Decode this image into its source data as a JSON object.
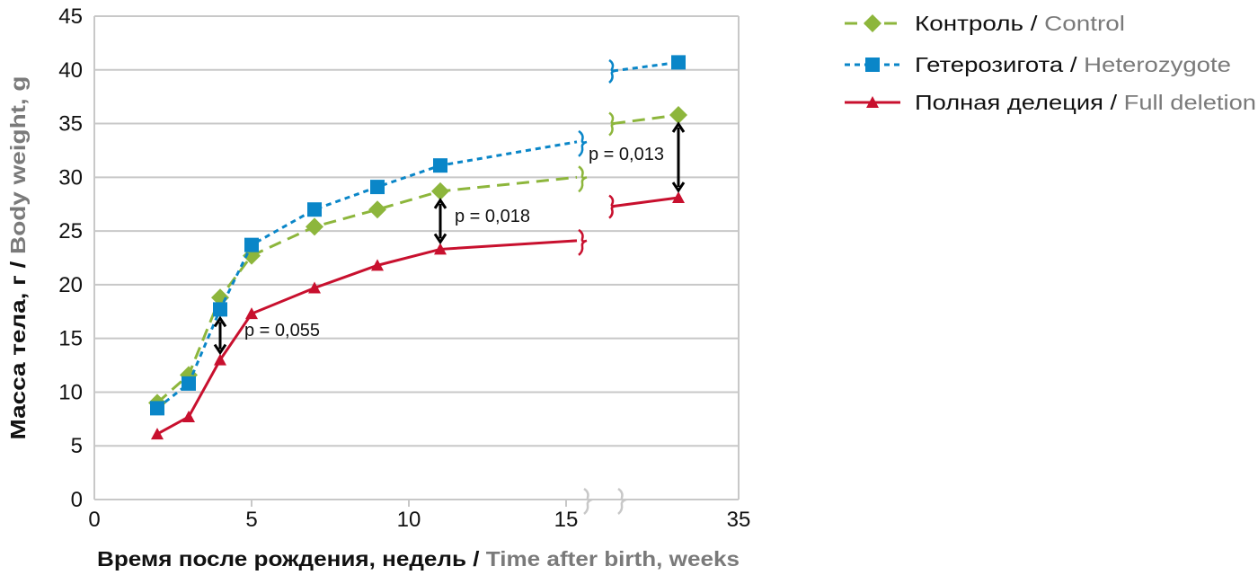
{
  "chart_data": {
    "type": "line",
    "xlabel": {
      "ru": "Время после рождения, недель / ",
      "en": "Time after birth, weeks"
    },
    "ylabel": {
      "ru": "Масса тела, г / ",
      "en": "Body weight, g"
    },
    "x_ticks": [
      "0",
      "5",
      "10",
      "15",
      "35"
    ],
    "y_ticks": [
      "0",
      "5",
      "10",
      "15",
      "20",
      "25",
      "30",
      "35",
      "40",
      "45"
    ],
    "ylim": [
      0,
      45
    ],
    "x_axis_break": "between 15 and 35",
    "grid": "horizontal",
    "legend_position": "top-right",
    "series": [
      {
        "name_ru": "Контроль / ",
        "name_en": "Control",
        "color": "#8db63c",
        "style": "dashed",
        "marker": "diamond",
        "x": [
          2,
          3,
          4,
          5,
          7,
          9,
          11,
          33
        ],
        "y": [
          9.0,
          11.6,
          18.8,
          22.7,
          25.4,
          27.0,
          28.7,
          35.8
        ],
        "value_at_break_left": 30.0,
        "value_at_break_right": 35.0
      },
      {
        "name_ru": "Гетерозигота / ",
        "name_en": "Heterozygote",
        "color": "#0a86c8",
        "style": "dotted",
        "marker": "square",
        "x": [
          2,
          3,
          4,
          5,
          7,
          9,
          11,
          33
        ],
        "y": [
          8.5,
          10.8,
          17.7,
          23.7,
          27.0,
          29.1,
          31.1,
          40.7
        ],
        "value_at_break_left": 33.3,
        "value_at_break_right": 39.9
      },
      {
        "name_ru": "Полная делеция / ",
        "name_en": "Full deletion",
        "color": "#c8102e",
        "style": "solid",
        "marker": "triangle",
        "x": [
          2,
          3,
          4,
          5,
          7,
          9,
          11,
          33
        ],
        "y": [
          6.1,
          7.7,
          13.0,
          17.3,
          19.7,
          21.8,
          23.3,
          28.1
        ],
        "value_at_break_left": 24.1,
        "value_at_break_right": 27.3
      }
    ],
    "annotations": [
      {
        "text": "p = 0,055",
        "x": 4,
        "y_from": 17.7,
        "y_to": 13.0
      },
      {
        "text": "p = 0,018",
        "x": 11,
        "y_from": 28.7,
        "y_to": 23.3
      },
      {
        "text": "p = 0,013",
        "x": 33,
        "y_from": 35.8,
        "y_to": 28.1
      }
    ]
  }
}
